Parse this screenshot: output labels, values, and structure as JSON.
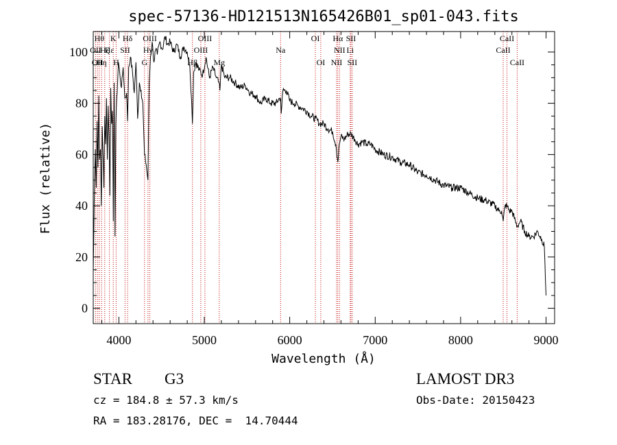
{
  "chart_data": {
    "type": "line",
    "title": "spec-57136-HD121513N165426B01_sp01-043.fits",
    "xlabel": "Wavelength (Å)",
    "ylabel": "Flux (relative)",
    "xlim": [
      3700,
      9100
    ],
    "ylim": [
      -6,
      108
    ],
    "xticks": [
      4000,
      5000,
      6000,
      7000,
      8000,
      9000
    ],
    "yticks": [
      0,
      20,
      40,
      60,
      80,
      100
    ],
    "series": [
      {
        "name": "spectrum",
        "x": [
          3700,
          3705,
          3715,
          3725,
          3735,
          3745,
          3755,
          3765,
          3775,
          3785,
          3795,
          3805,
          3815,
          3825,
          3835,
          3845,
          3855,
          3865,
          3875,
          3885,
          3895,
          3905,
          3915,
          3925,
          3935,
          3945,
          3955,
          3965,
          3975,
          3985,
          3995,
          4010,
          4030,
          4050,
          4070,
          4090,
          4102,
          4115,
          4135,
          4160,
          4180,
          4200,
          4220,
          4240,
          4260,
          4280,
          4300,
          4320,
          4340,
          4355,
          4370,
          4390,
          4410,
          4430,
          4450,
          4480,
          4510,
          4540,
          4570,
          4600,
          4640,
          4680,
          4720,
          4760,
          4800,
          4830,
          4850,
          4861,
          4875,
          4900,
          4940,
          4980,
          5020,
          5060,
          5100,
          5140,
          5170,
          5183,
          5200,
          5240,
          5300,
          5360,
          5420,
          5480,
          5540,
          5600,
          5660,
          5720,
          5780,
          5840,
          5880,
          5893,
          5900,
          5920,
          5960,
          6000,
          6050,
          6100,
          6150,
          6200,
          6250,
          6300,
          6350,
          6400,
          6450,
          6500,
          6540,
          6563,
          6580,
          6600,
          6640,
          6680,
          6720,
          6760,
          6800,
          6850,
          6900,
          6950,
          7000,
          7100,
          7200,
          7300,
          7400,
          7500,
          7600,
          7700,
          7800,
          7900,
          8000,
          8100,
          8200,
          8300,
          8400,
          8450,
          8480,
          8498,
          8520,
          8542,
          8570,
          8600,
          8640,
          8662,
          8700,
          8750,
          8800,
          8850,
          8900,
          8950,
          8980,
          9000
        ],
        "y": [
          14,
          25,
          49,
          62,
          47,
          73,
          55,
          83,
          58,
          62,
          40,
          71,
          60,
          47,
          75,
          64,
          82,
          58,
          79,
          67,
          44,
          86,
          72,
          77,
          34,
          88,
          28,
          72,
          82,
          88,
          96,
          92,
          86,
          94,
          82,
          84,
          73,
          94,
          98,
          92,
          84,
          96,
          74,
          88,
          85,
          80,
          60,
          56,
          50,
          88,
          98,
          104,
          96,
          101,
          99,
          104,
          101,
          106,
          103,
          104,
          100,
          103,
          98,
          102,
          100,
          95,
          82,
          72,
          92,
          96,
          93,
          91,
          98,
          90,
          94,
          90,
          88,
          85,
          95,
          90,
          90,
          88,
          86,
          87,
          84,
          83,
          80,
          82,
          80,
          80,
          82,
          82,
          76,
          85,
          85,
          81,
          80,
          79,
          78,
          77,
          75,
          74,
          72,
          72,
          70,
          69,
          64,
          57,
          64,
          67,
          66,
          68,
          68,
          66,
          64,
          65,
          64,
          64,
          62,
          60,
          59,
          57,
          56,
          53,
          52,
          50,
          48,
          47,
          47,
          45,
          43,
          42,
          40,
          38,
          38,
          34,
          40,
          40,
          38,
          38,
          34,
          32,
          34,
          30,
          28,
          28,
          30,
          27,
          24,
          5
        ]
      }
    ],
    "line_markers": [
      {
        "wave": 3727,
        "label": "OII",
        "row": 1
      },
      {
        "wave": 3750,
        "label": "OII",
        "row": 2
      },
      {
        "wave": 3771,
        "label": "Hθ",
        "row": 0
      },
      {
        "wave": 3798,
        "label": "Hη",
        "row": 2
      },
      {
        "wave": 3835,
        "label": "Hζ",
        "row": 1
      },
      {
        "wave": 3889,
        "label": "Hε",
        "row": 1
      },
      {
        "wave": 3934,
        "label": "K",
        "row": 0
      },
      {
        "wave": 3968,
        "label": "H",
        "row": 2
      },
      {
        "wave": 4072,
        "label": "SII",
        "row": 1
      },
      {
        "wave": 4102,
        "label": "Hδ",
        "row": 0
      },
      {
        "wave": 4300,
        "label": "G",
        "row": 2
      },
      {
        "wave": 4341,
        "label": "Hγ",
        "row": 1
      },
      {
        "wave": 4363,
        "label": "OIII",
        "row": 0
      },
      {
        "wave": 4861,
        "label": "Hβ",
        "row": 2
      },
      {
        "wave": 4959,
        "label": "OIII",
        "row": 1
      },
      {
        "wave": 5007,
        "label": "OIII",
        "row": 0
      },
      {
        "wave": 5175,
        "label": "Mg",
        "row": 2
      },
      {
        "wave": 5893,
        "label": "Na",
        "row": 1
      },
      {
        "wave": 6300,
        "label": "OI",
        "row": 0
      },
      {
        "wave": 6363,
        "label": "OI",
        "row": 2
      },
      {
        "wave": 6548,
        "label": "NII",
        "row": 2
      },
      {
        "wave": 6563,
        "label": "Hα",
        "row": 0
      },
      {
        "wave": 6583,
        "label": "NII",
        "row": 1
      },
      {
        "wave": 6707,
        "label": "Li",
        "row": 1
      },
      {
        "wave": 6716,
        "label": "SII",
        "row": 0
      },
      {
        "wave": 6731,
        "label": "SII",
        "row": 2
      },
      {
        "wave": 8498,
        "label": "CaII",
        "row": 1
      },
      {
        "wave": 8542,
        "label": "CaII",
        "row": 0
      },
      {
        "wave": 8662,
        "label": "CaII",
        "row": 2
      }
    ]
  },
  "info": {
    "object_class": "STAR",
    "subclass": "G3",
    "survey": "LAMOST DR3",
    "redshift": "cz = 184.8 ± 57.3 km/s",
    "obs_date": "Obs-Date: 20150423",
    "coords": "RA = 183.28176, DEC =  14.70444"
  }
}
